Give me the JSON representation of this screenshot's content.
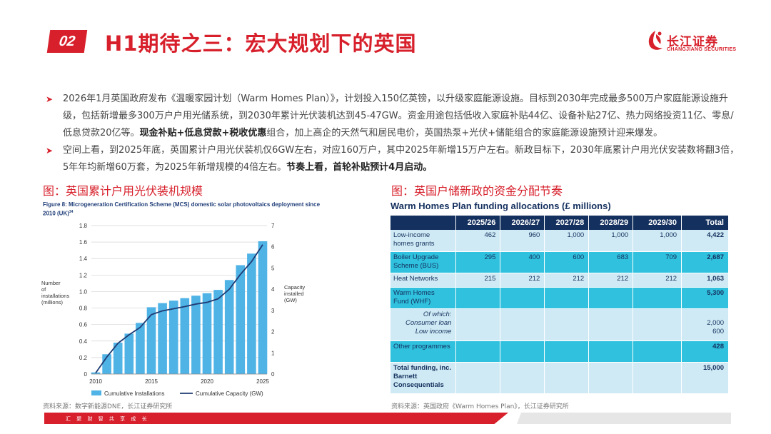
{
  "header": {
    "section_number": "02",
    "title": "H1期待之三：宏大规划下的英国",
    "logo_cn": "长江证券",
    "logo_en": "CHANGJIANG SECURITIES"
  },
  "bullets": {
    "b1_text": "2026年1月英国政府发布《温暖家园计划（Warm Homes Plan）》，计划投入150亿英镑，以升级家庭能源设施。目标到2030年完成最多500万户家庭能源设施升级，包括新增最多300万户户用光储系统，到2030年累计光伏装机达到45-47GW。资金用途包括低收入家庭补贴44亿、设备补贴27亿、热力网络投资11亿、零息/低息贷款20亿等。",
    "b1_bold": "现金补贴+低息贷款+税收优惠",
    "b1_tail": "组合，加上高企的天然气和居民电价，英国热泵+光伏+储能组合的家庭能源设施预计迎来爆发。",
    "b2_text": "空间上看，到2025年底，英国累计户用光伏装机仅6GW左右，对应160万户，其中2025年新增15万户左右。新政目标下，2030年底累计户用光伏安装数将翻3倍，5年年均新增60万套，为2025年新增规模的4倍左右。",
    "b2_bold": "节奏上看，首轮补贴预计4月启动。"
  },
  "left": {
    "caption": "图：英国累计户用光伏装机规模",
    "fig_title": "Figure 8: Microgeneration Certification Scheme (MCS) domestic solar photovoltaics deployment since 2010 (UK)",
    "fig_title_sup": "34",
    "source": "资料来源：数字新能源DNE，长江证券研究所"
  },
  "chart_data": {
    "type": "bar",
    "x": [
      2010,
      2011,
      2012,
      2013,
      2014,
      2015,
      2016,
      2017,
      2018,
      2019,
      2020,
      2021,
      2022,
      2023,
      2024,
      2025
    ],
    "series": [
      {
        "name": "Cumulative Installations",
        "type": "bar",
        "axis": "left",
        "values": [
          0.02,
          0.24,
          0.38,
          0.49,
          0.62,
          0.81,
          0.86,
          0.89,
          0.92,
          0.95,
          0.98,
          1.02,
          1.14,
          1.32,
          1.46,
          1.61
        ]
      },
      {
        "name": "Cumulative Capacity (GW)",
        "type": "line",
        "axis": "right",
        "values": [
          0.05,
          0.8,
          1.45,
          1.85,
          2.2,
          2.8,
          2.98,
          3.08,
          3.18,
          3.3,
          3.38,
          3.55,
          4.0,
          4.7,
          5.3,
          6.1
        ]
      }
    ],
    "ylabel": "Number of installations (millions)",
    "y2label": "Capacity installed (GW)",
    "ylim": [
      0,
      1.8
    ],
    "y2lim": [
      0,
      7
    ],
    "yticks": [
      "0",
      "0.2",
      "0.4",
      "0.6",
      "0.8",
      "1.0",
      "1.2",
      "1.4",
      "1.6",
      "1.8"
    ],
    "y2ticks": [
      "0",
      "1",
      "2",
      "3",
      "4",
      "5",
      "6",
      "7"
    ],
    "xticks": [
      "2010",
      "2015",
      "2020",
      "2025"
    ],
    "grid": true,
    "legend": "bottom",
    "colors": {
      "bar": "#4fb3e6",
      "line": "#1f3b73"
    }
  },
  "right": {
    "caption": "图：英国户储新政的资金分配节奏",
    "table_title": "Warm Homes Plan funding allocations (£ millions)",
    "columns": [
      "",
      "2025/26",
      "2026/27",
      "2027/28",
      "2028/29",
      "2029/30",
      "Total"
    ],
    "rows": [
      {
        "label": "Low-income homes grants",
        "cells": [
          "462",
          "960",
          "1,000",
          "1,000",
          "1,000"
        ],
        "total": "4,422"
      },
      {
        "label": "Boiler Upgrade Scheme (BUS)",
        "cells": [
          "295",
          "400",
          "600",
          "683",
          "709"
        ],
        "total": "2,687"
      },
      {
        "label": "Heat Networks",
        "cells": [
          "215",
          "212",
          "212",
          "212",
          "212"
        ],
        "total": "1,063"
      },
      {
        "label": "Warm Homes Fund (WHF)",
        "cells": [
          "",
          "",
          "",
          "",
          ""
        ],
        "total": "5,300"
      },
      {
        "label_1": "Of which:",
        "label_2": "Consumer loan",
        "label_3": "Low income",
        "total_1": "2,000",
        "total_2": "600"
      },
      {
        "label": "Other programmes",
        "cells": [
          "",
          "",
          "",
          "",
          ""
        ],
        "total": "428"
      },
      {
        "label": "Total funding, inc. Barnett Consequentials",
        "cells": [
          "",
          "",
          "",
          "",
          ""
        ],
        "total": "15,000"
      }
    ],
    "source": "资料来源：英国政府《Warm Homes Plan》，长江证券研究所"
  },
  "footer": {
    "slogan": "汇 聚 财 智  共 享 成 长"
  },
  "colors": {
    "brand_red": "#d7202b",
    "navy": "#14305e",
    "cyan": "#2fc1de",
    "light_cyan": "#cfeaf4"
  }
}
